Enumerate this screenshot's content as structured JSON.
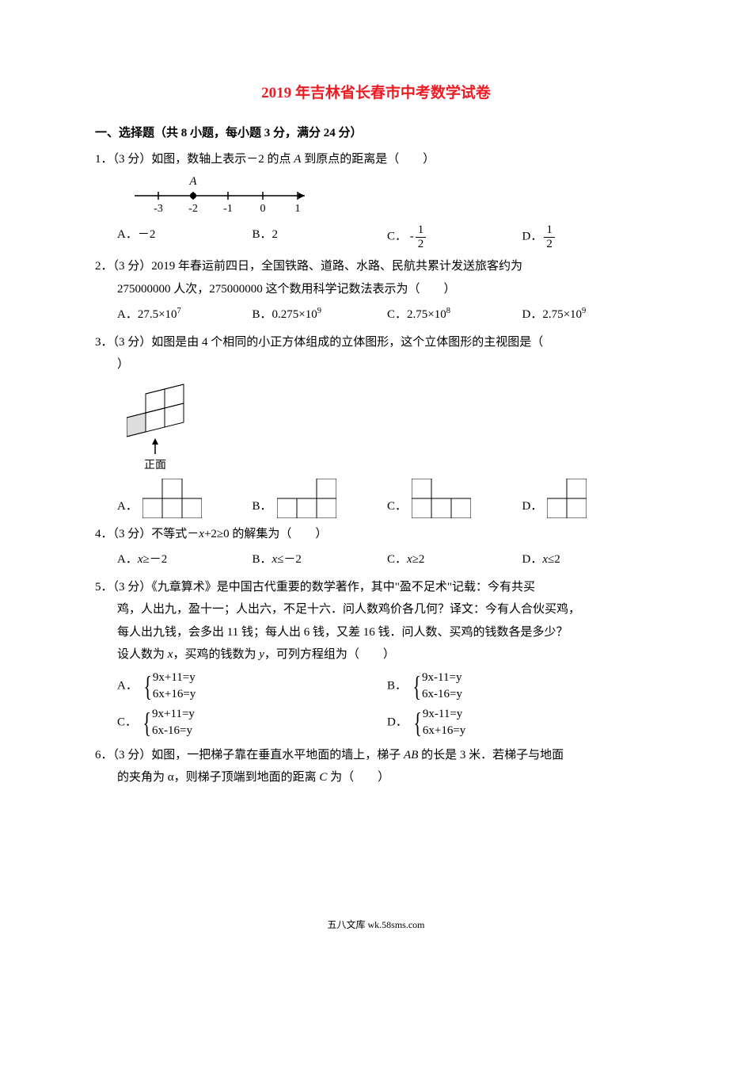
{
  "title": "2019 年吉林省长春市中考数学试卷",
  "section1": {
    "header": "一、选择题（共 8 小题，每小题 3 分，满分 24 分）"
  },
  "q1": {
    "label": "1．",
    "points": "（3 分）",
    "text": "如图，数轴上表示－2 的点",
    "text2": "到原点的距离是（　　）",
    "pointA": "A",
    "numline": {
      "ticks": [
        "-3",
        "-2",
        "-1",
        "0",
        "1"
      ],
      "dot_index": 1,
      "dot_label": "A"
    },
    "opts": {
      "A": "A．－2",
      "B": "B．2",
      "C_prefix": "C．",
      "C_neg": "-",
      "C_num": "1",
      "C_den": "2",
      "D_prefix": "D．",
      "D_num": "1",
      "D_den": "2"
    }
  },
  "q2": {
    "label": "2．",
    "points": "（3 分）",
    "text": "2019 年春运前四日，全国铁路、道路、水路、民航共累计发送旅客约为",
    "line2": "275000000 人次，275000000 这个数用科学记数法表示为（　　）",
    "opts": {
      "A_pre": "A．27.5×10",
      "A_sup": "7",
      "B_pre": "B．0.275×10",
      "B_sup": "9",
      "C_pre": "C．2.75×10",
      "C_sup": "8",
      "D_pre": "D．2.75×10",
      "D_sup": "9"
    }
  },
  "q3": {
    "label": "3．",
    "points": "（3 分）",
    "text": "如图是由 4 个相同的小正方体组成的立体图形，这个立体图形的主视图是（",
    "line2": "）",
    "front_label": "正面",
    "opts": {
      "A": "A．",
      "B": "B．",
      "C": "C．",
      "D": "D．"
    }
  },
  "q4": {
    "label": "4．",
    "points": "（3 分）",
    "text_pre": "不等式－",
    "text_var": "x",
    "text_post": "+2≥0 的解集为（　　）",
    "opts": {
      "A_pre": "A．",
      "A_var": "x",
      "A_post": "≥－2",
      "B_pre": "B．",
      "B_var": "x",
      "B_post": "≤－2",
      "C_pre": "C．",
      "C_var": "x",
      "C_post": "≥2",
      "D_pre": "D．",
      "D_var": "x",
      "D_post": "≤2"
    }
  },
  "q5": {
    "label": "5．",
    "points": "（3 分）",
    "text": "《九章算术》是中国古代重要的数学著作，其中\"盈不足术\"记载：今有共买",
    "line2": "鸡，人出九，盈十一；人出六，不足十六．问人数鸡价各几何？译文：今有人合伙买鸡，",
    "line3": "每人出九钱，会多出 11 钱；每人出 6 钱，又差 16 钱．问人数、买鸡的钱数各是多少？",
    "line4_pre": "设人数为 ",
    "line4_x": "x",
    "line4_mid": "，买鸡的钱数为 ",
    "line4_y": "y",
    "line4_post": "，可列方程组为（　　）",
    "opts": {
      "A": "A．",
      "A_eq1": "9x+11=y",
      "A_eq2": "6x+16=y",
      "B": "B．",
      "B_eq1": "9x-11=y",
      "B_eq2": "6x-16=y",
      "C": "C．",
      "C_eq1": "9x+11=y",
      "C_eq2": "6x-16=y",
      "D": "D．",
      "D_eq1": "9x-11=y",
      "D_eq2": "6x+16=y"
    }
  },
  "q6": {
    "label": "6．",
    "points": "（3 分）",
    "text_pre": "如图，一把梯子靠在垂直水平地面的墙上，梯子 ",
    "text_ab": "AB",
    "text_post": " 的长是 3 米．若梯子与地面",
    "line2_pre": "的夹角为 α，则梯子顶端到地面的距离 ",
    "line2_c": "C",
    "line2_post": " 为（　　）"
  },
  "footer": "五八文库 wk.58sms.com"
}
